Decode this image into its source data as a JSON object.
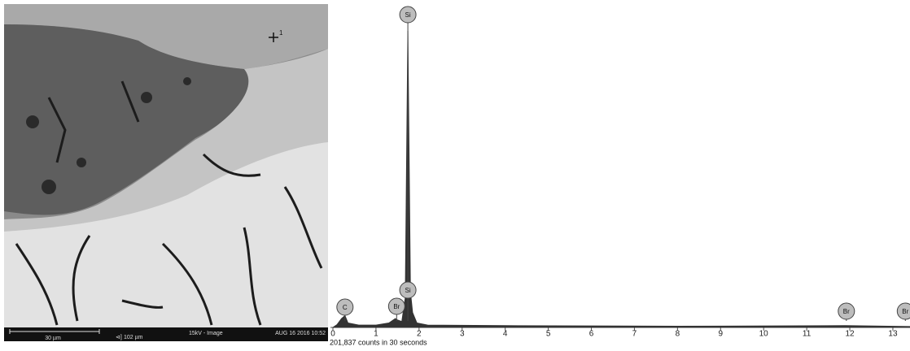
{
  "micrograph": {
    "point_label": "1",
    "scale_bar": "30 µm",
    "field_width": "102 µm",
    "beam": "15kV - Image",
    "timestamp": "AUG 16 2016 10:52"
  },
  "chart_data": {
    "type": "line",
    "x": [
      0,
      0.1,
      0.2,
      0.28,
      0.35,
      0.6,
      1.0,
      1.3,
      1.45,
      1.5,
      1.6,
      1.68,
      1.74,
      1.8,
      1.85,
      1.95,
      2.2,
      4,
      8,
      11.9,
      13.4
    ],
    "values": [
      0,
      1,
      3,
      4,
      1.5,
      0.8,
      0.8,
      1.5,
      3,
      2.5,
      2,
      10,
      100,
      12,
      5,
      1.5,
      0.8,
      0.6,
      0.4,
      0.6,
      0.3
    ],
    "color": "#333333",
    "xlim": [
      0,
      13.4
    ],
    "ylim": [
      0,
      100
    ],
    "xticks": [
      0,
      1,
      2,
      3,
      4,
      5,
      6,
      7,
      8,
      9,
      10,
      11,
      12,
      13
    ],
    "annotation": "201,837 counts in 30 seconds",
    "peaks": [
      {
        "label": "Si",
        "x": 1.74
      },
      {
        "label": "C",
        "x": 0.28
      },
      {
        "label": "Br",
        "x": 1.48
      },
      {
        "label": "Si",
        "x": 1.74
      },
      {
        "label": "Br",
        "x": 11.92
      },
      {
        "label": "Br",
        "x": 13.29
      }
    ]
  }
}
